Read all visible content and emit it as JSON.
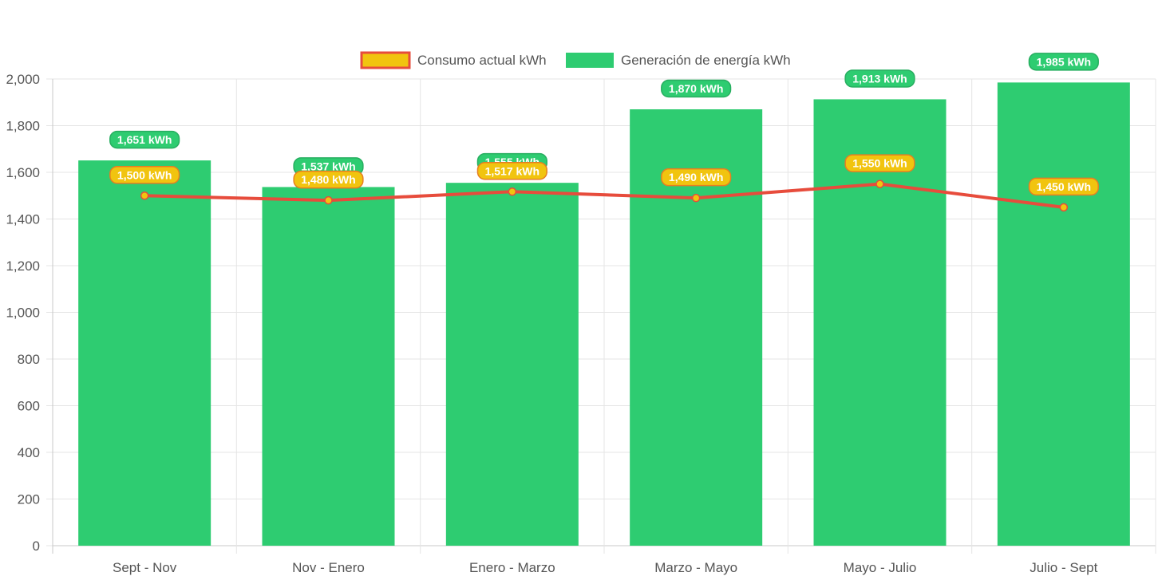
{
  "chart_data": {
    "type": "bar",
    "categories": [
      "Sept - Nov",
      "Nov - Enero",
      "Enero - Marzo",
      "Marzo - Mayo",
      "Mayo - Julio",
      "Julio - Sept"
    ],
    "series": [
      {
        "name": "Consumo actual kWh",
        "type": "line",
        "values": [
          1500,
          1480,
          1517,
          1490,
          1550,
          1450
        ],
        "labels": [
          "1,500 kWh",
          "1,480 kWh",
          "1,517 kWh",
          "1,490 kWh",
          "1,550 kWh",
          "1,450 kWh"
        ],
        "color": "#e74c3c",
        "fill": "#f1c40f"
      },
      {
        "name": "Generación de energía kWh",
        "type": "bar",
        "values": [
          1651,
          1537,
          1555,
          1870,
          1913,
          1985
        ],
        "labels": [
          "1,651 kWh",
          "1,537 kWh",
          "1,555 kWh",
          "1,870 kWh",
          "1,913 kWh",
          "1,985 kWh"
        ],
        "color": "#2ecc71"
      }
    ],
    "y_ticks": [
      "0",
      "200",
      "400",
      "600",
      "800",
      "1,000",
      "1,200",
      "1,400",
      "1,600",
      "1,800",
      "2,000"
    ],
    "ylim": [
      0,
      2000
    ],
    "grid": true,
    "legend_position": "top-center",
    "title": "",
    "xlabel": "",
    "ylabel": ""
  }
}
